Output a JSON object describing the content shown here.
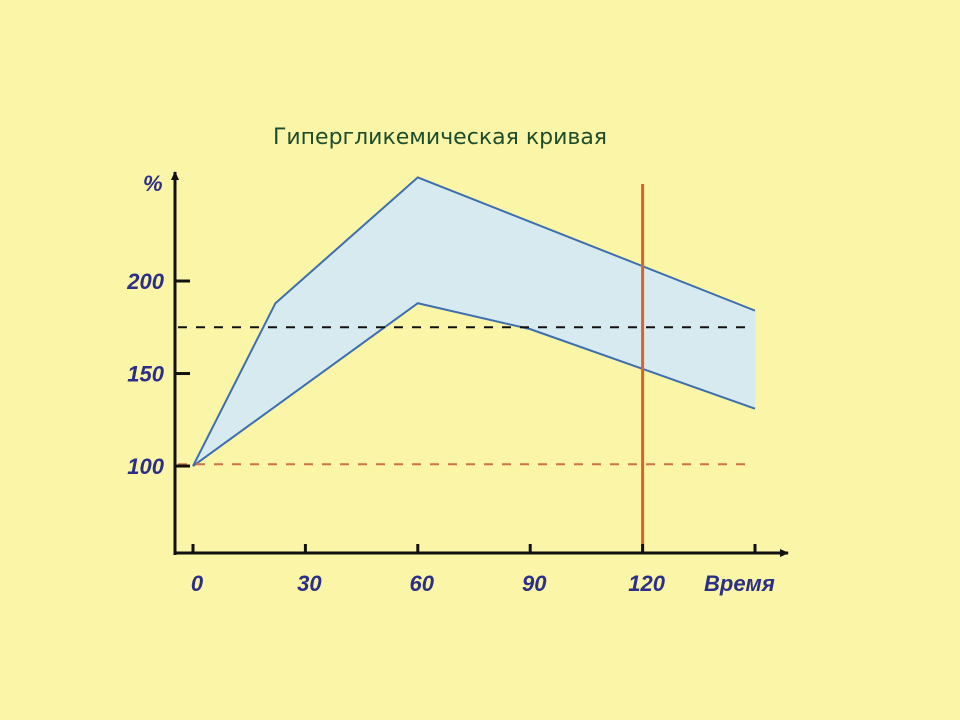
{
  "colors": {
    "background": "#FBF5A8",
    "axis": "#111111",
    "band_fill": "#D6EAF0",
    "band_stroke": "#3D6FAE",
    "threshold_line": "#111111",
    "baseline_line": "#D0704A",
    "marker_line": "#E0602A",
    "title": "#1E4D2B",
    "labels": "#2B2F86"
  },
  "chart_data": {
    "type": "area",
    "title": "Гипергликемическая кривая",
    "xlabel": "Время",
    "ylabel": "%",
    "x_ticks": [
      0,
      30,
      60,
      90,
      120
    ],
    "x_tick_labels": [
      "0",
      "30",
      "60",
      "90",
      "120"
    ],
    "y_ticks": [
      100,
      150,
      200
    ],
    "y_tick_labels": [
      "100",
      "150",
      "200"
    ],
    "xlim": [
      0,
      150
    ],
    "ylim": [
      53,
      260
    ],
    "grid": false,
    "series": [
      {
        "role": "upper-bound",
        "points": [
          [
            0,
            100
          ],
          [
            22,
            188
          ],
          [
            60,
            256
          ],
          [
            150,
            184
          ]
        ]
      },
      {
        "role": "lower-bound",
        "points": [
          [
            0,
            100
          ],
          [
            60,
            188
          ],
          [
            90,
            174
          ],
          [
            150,
            131
          ]
        ]
      }
    ],
    "reference_lines": [
      {
        "orientation": "horizontal",
        "y": 175,
        "style": "dashed",
        "color": "#111111"
      },
      {
        "orientation": "horizontal",
        "y": 101,
        "style": "dashed",
        "color": "#D0704A"
      },
      {
        "orientation": "vertical",
        "x": 120,
        "style": "solid",
        "color": "#E0602A"
      }
    ]
  }
}
